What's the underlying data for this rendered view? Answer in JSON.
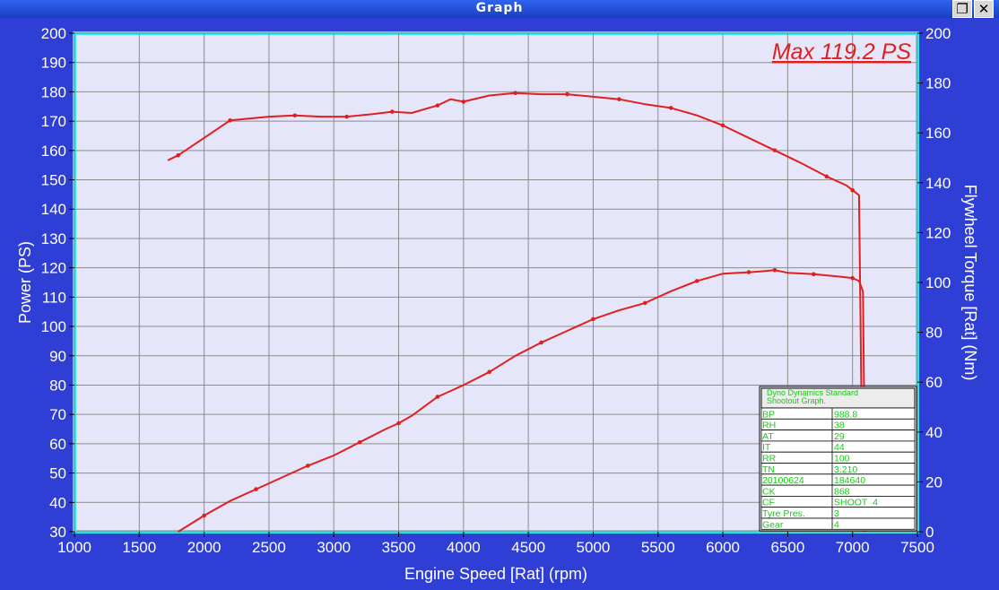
{
  "window": {
    "title": "Graph",
    "restore_icon": "restore-icon",
    "close_icon": "close-icon"
  },
  "colors": {
    "background": "#2f3fd6",
    "plot_area": "#e6e6fa",
    "plot_border": "#34e8f0",
    "grid": "#8c8c8c",
    "curve": "#e02020",
    "annotation": "#e02020",
    "table_text": "#18c818"
  },
  "annotation": "Max 119.2 PS",
  "info_table": {
    "title": "Dyno Dynamics Standard Shootout Graph.",
    "rows": [
      [
        "BP",
        "988.8"
      ],
      [
        "RH",
        "38"
      ],
      [
        "AT",
        "29"
      ],
      [
        "IT",
        "44"
      ],
      [
        "RR",
        "100"
      ],
      [
        "TN",
        "3.210"
      ],
      [
        "20100624",
        "184640"
      ],
      [
        "CK",
        "868"
      ],
      [
        "CF",
        "SHOOT_4"
      ],
      [
        "Tyre Pres.",
        "3"
      ],
      [
        "Gear",
        "4"
      ]
    ]
  },
  "chart_data": {
    "type": "line",
    "xlabel": "Engine Speed [Rat] (rpm)",
    "ylabel": "Power (PS)",
    "y2label": "Flywheel Torque [Rat] (Nm)",
    "xlim": [
      1000,
      7500
    ],
    "ylim": [
      30,
      200
    ],
    "y2lim": [
      0,
      200
    ],
    "x_ticks": [
      1000,
      1500,
      2000,
      2500,
      3000,
      3500,
      4000,
      4500,
      5000,
      5500,
      6000,
      6500,
      7000,
      7500
    ],
    "y_ticks": [
      30,
      40,
      50,
      60,
      70,
      80,
      90,
      100,
      110,
      120,
      130,
      140,
      150,
      160,
      170,
      180,
      190,
      200
    ],
    "y2_ticks": [
      0,
      20,
      40,
      60,
      80,
      100,
      120,
      140,
      160,
      180,
      200
    ],
    "grid": true,
    "series": [
      {
        "axis": "left",
        "x": [
          1800,
          2000,
          2200,
          2400,
          2600,
          2800,
          3000,
          3200,
          3400,
          3500,
          3600,
          3800,
          4000,
          4200,
          4400,
          4600,
          4800,
          5000,
          5200,
          5400,
          5600,
          5800,
          6000,
          6200,
          6300,
          6400,
          6500,
          6700,
          6900,
          7000,
          7050,
          7080,
          7100
        ],
        "y": [
          30,
          35.5,
          40.5,
          44.5,
          48.5,
          52.5,
          56,
          60.5,
          65,
          67,
          69.5,
          76,
          80,
          84.5,
          90,
          94.5,
          98.5,
          102.5,
          105.5,
          108,
          112,
          115.5,
          118,
          118.5,
          118.8,
          119.2,
          118.3,
          117.8,
          117,
          116.5,
          115.5,
          112,
          30
        ]
      },
      {
        "axis": "right",
        "x": [
          1720,
          1800,
          2000,
          2200,
          2500,
          2700,
          2900,
          3100,
          3300,
          3450,
          3600,
          3800,
          3900,
          4000,
          4200,
          4400,
          4600,
          4800,
          5000,
          5200,
          5400,
          5600,
          5800,
          6000,
          6200,
          6400,
          6600,
          6800,
          6950,
          7000,
          7050,
          7060,
          7080
        ],
        "y": [
          149,
          151,
          158,
          165,
          166.5,
          167,
          166.5,
          166.5,
          167.5,
          168.5,
          168,
          171,
          173.5,
          172.5,
          175,
          176,
          175.5,
          175.5,
          174.5,
          173.5,
          171.5,
          170,
          167,
          163,
          158,
          153,
          148,
          142.5,
          139,
          137,
          135,
          90,
          0
        ]
      }
    ]
  }
}
